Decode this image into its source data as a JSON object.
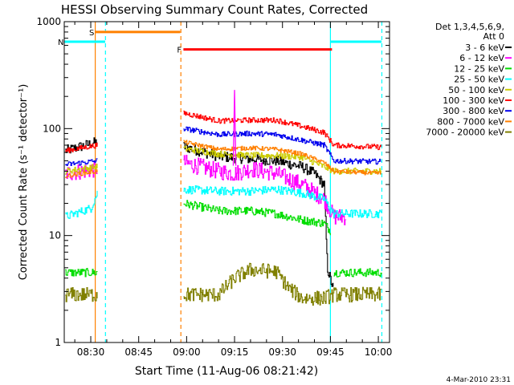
{
  "chart_data": {
    "type": "line",
    "title": "HESSI Observing Summary Count Rates, Corrected",
    "xlabel": "Start Time (11-Aug-06 08:21:42)",
    "ylabel": "Corrected Count Rate (s⁻¹ detector⁻¹)",
    "y_scale": "log",
    "ylim": [
      1,
      1000
    ],
    "xlim_minutes_of_day": [
      501.7,
      603.5
    ],
    "x_ticks": [
      {
        "label": "08:30",
        "t": 510
      },
      {
        "label": "08:45",
        "t": 525
      },
      {
        "label": "09:00",
        "t": 540
      },
      {
        "label": "09:15",
        "t": 555
      },
      {
        "label": "09:30",
        "t": 570
      },
      {
        "label": "09:45",
        "t": 585
      },
      {
        "label": "10:00",
        "t": 600
      }
    ],
    "y_ticks": [
      {
        "label": "1",
        "v": 1
      },
      {
        "label": "10",
        "v": 10
      },
      {
        "label": "100",
        "v": 100
      },
      {
        "label": "1000",
        "v": 1000
      }
    ],
    "legend_header": [
      "Det 1,3,4,5,6,9,",
      "Att 0"
    ],
    "legend_position": "right",
    "data_gap": [
      518.5,
      538
    ],
    "series": [
      {
        "name": "3 - 6 keV",
        "color": "#000000",
        "noise": 0.05,
        "pre": [
          [
            502,
            62
          ],
          [
            512,
            75
          ]
        ],
        "post": [
          [
            539,
            68
          ],
          [
            550,
            55
          ],
          [
            560,
            52
          ],
          [
            568,
            50
          ],
          [
            576,
            44
          ],
          [
            580,
            38
          ],
          [
            583,
            30
          ],
          [
            584,
            5
          ],
          [
            586,
            3
          ]
        ]
      },
      {
        "name": "6 - 12 keV",
        "color": "#ff00ff",
        "noise": 0.08,
        "pre": [
          [
            502,
            38
          ],
          [
            512,
            42
          ]
        ],
        "post": [
          [
            539,
            48
          ],
          [
            550,
            40
          ],
          [
            555,
            38
          ],
          [
            560,
            42
          ],
          [
            568,
            38
          ],
          [
            576,
            30
          ],
          [
            583,
            22
          ],
          [
            586,
            15
          ],
          [
            590,
            15
          ]
        ]
      },
      {
        "name": "12 - 25 keV",
        "color": "#00dd00",
        "noise": 0.04,
        "pre": [
          [
            502,
            4.5
          ],
          [
            512,
            4.5
          ]
        ],
        "post": [
          [
            539,
            20
          ],
          [
            550,
            17
          ],
          [
            560,
            17
          ],
          [
            568,
            16
          ],
          [
            576,
            14
          ],
          [
            583,
            13
          ],
          [
            585,
            11
          ]
        ],
        "tail": [
          [
            586,
            4.5
          ],
          [
            601,
            4.5
          ]
        ]
      },
      {
        "name": "25 - 50 keV",
        "color": "#00ffff",
        "noise": 0.04,
        "pre": [
          [
            502,
            15
          ],
          [
            510,
            18
          ],
          [
            512,
            25
          ]
        ],
        "post": [
          [
            539,
            27
          ],
          [
            550,
            26
          ],
          [
            560,
            26
          ],
          [
            568,
            27
          ],
          [
            576,
            25
          ],
          [
            583,
            22
          ],
          [
            586,
            16
          ],
          [
            601,
            16
          ]
        ]
      },
      {
        "name": "50 - 100 keV",
        "color": "#cccc00",
        "noise": 0.03,
        "pre": [
          [
            502,
            40
          ],
          [
            512,
            44
          ]
        ],
        "post": [
          [
            539,
            65
          ],
          [
            550,
            58
          ],
          [
            560,
            56
          ],
          [
            568,
            56
          ],
          [
            576,
            54
          ],
          [
            583,
            44
          ],
          [
            586,
            40
          ],
          [
            601,
            40
          ]
        ]
      },
      {
        "name": "100 - 300 keV",
        "color": "#ff0000",
        "noise": 0.025,
        "pre": [
          [
            502,
            62
          ],
          [
            512,
            70
          ]
        ],
        "post": [
          [
            539,
            140
          ],
          [
            550,
            118
          ],
          [
            560,
            120
          ],
          [
            568,
            120
          ],
          [
            576,
            105
          ],
          [
            583,
            92
          ],
          [
            586,
            70
          ],
          [
            601,
            67
          ]
        ]
      },
      {
        "name": "300 - 800 keV",
        "color": "#0000ee",
        "noise": 0.025,
        "pre": [
          [
            502,
            46
          ],
          [
            512,
            50
          ]
        ],
        "post": [
          [
            539,
            100
          ],
          [
            550,
            88
          ],
          [
            560,
            90
          ],
          [
            568,
            88
          ],
          [
            576,
            78
          ],
          [
            583,
            70
          ],
          [
            586,
            50
          ],
          [
            601,
            49
          ]
        ]
      },
      {
        "name": "800 - 7000 keV",
        "color": "#ff8000",
        "noise": 0.02,
        "pre": [
          [
            502,
            36
          ],
          [
            512,
            40
          ]
        ],
        "post": [
          [
            539,
            75
          ],
          [
            550,
            64
          ],
          [
            560,
            66
          ],
          [
            568,
            64
          ],
          [
            576,
            58
          ],
          [
            583,
            48
          ],
          [
            586,
            40
          ],
          [
            601,
            38
          ]
        ]
      },
      {
        "name": "7000 - 20000 keV",
        "color": "#808000",
        "noise": 0.07,
        "pre": [
          [
            502,
            2.8
          ],
          [
            512,
            2.8
          ]
        ],
        "post": [
          [
            539,
            2.8
          ],
          [
            550,
            2.8
          ],
          [
            555,
            4
          ],
          [
            560,
            4.8
          ],
          [
            568,
            4.6
          ],
          [
            572,
            3.2
          ],
          [
            576,
            2.6
          ],
          [
            583,
            2.6
          ],
          [
            586,
            2.8
          ],
          [
            601,
            2.8
          ]
        ]
      }
    ],
    "flags": [
      {
        "label": "S",
        "color": "#ff8000",
        "y": 800,
        "t_start": 511.5,
        "t_end": 538
      },
      {
        "label": "N",
        "color": "#00ffff",
        "y": 650,
        "t_start": 501.7,
        "t_end": 514.5
      },
      {
        "label": "F",
        "color": "#ff0000",
        "y": 550,
        "t_start": 539,
        "t_end": 585.5
      }
    ],
    "night_end_flag": {
      "color": "#00ffff",
      "y": 650,
      "t_start": 585,
      "t_end": 601
    },
    "vlines": [
      {
        "t": 511.4,
        "color": "#ff8000",
        "dash": false
      },
      {
        "t": 514.6,
        "color": "#00ffff",
        "dash": true
      },
      {
        "t": 538.2,
        "color": "#ff8000",
        "dash": true
      },
      {
        "t": 585.0,
        "color": "#00ffff",
        "dash": false
      },
      {
        "t": 601.1,
        "color": "#00ffff",
        "dash": true
      }
    ],
    "spike": {
      "t": 555,
      "series": "6 - 12 keV",
      "peak": 230
    }
  },
  "timestamp": "4-Mar-2010 23:31"
}
